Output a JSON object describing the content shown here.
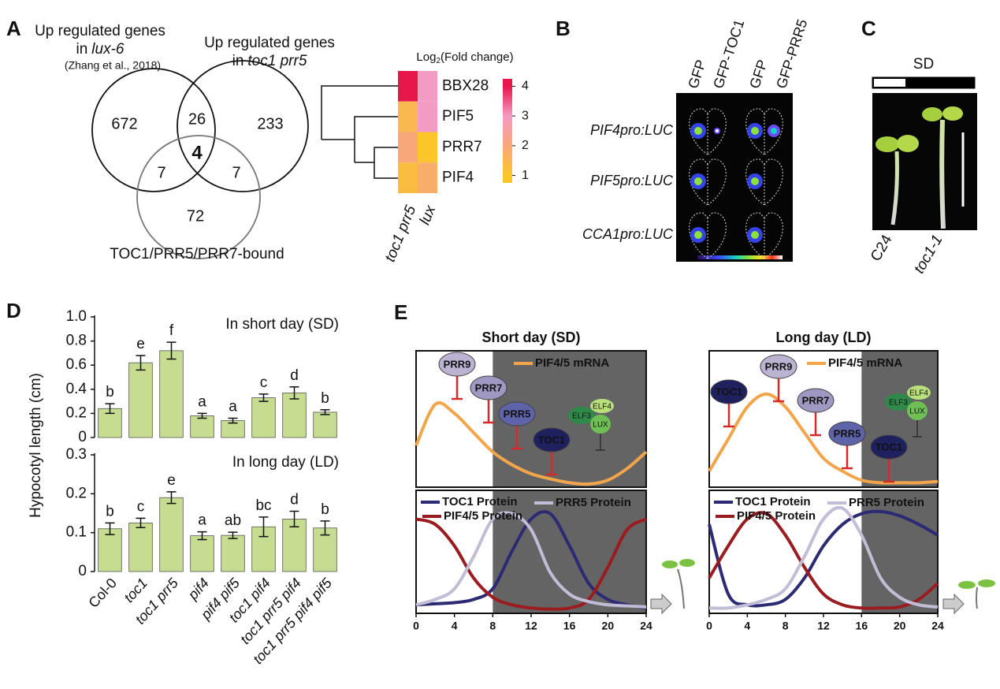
{
  "panels": [
    "A",
    "B",
    "C",
    "D",
    "E"
  ],
  "venn": {
    "sets": [
      {
        "lines": [
          "Up regulated genes"
        ],
        "prefix": "in",
        "genotype": "lux-6",
        "note": "(Zhang et al., 2018)"
      },
      {
        "lines": [
          "Up regulated genes"
        ],
        "prefix": "in",
        "genotype": "toc1 prr5"
      },
      {
        "lines": [
          "TOC1/PRR5/PRR7-bound"
        ]
      }
    ],
    "counts": [
      672,
      26,
      233,
      7,
      4,
      7,
      72
    ]
  },
  "heatmap": {
    "title": [
      "Log",
      "2",
      "(Fold change)"
    ],
    "rows": [
      "BBX28",
      "PIF5",
      "PRR7",
      "PIF4"
    ],
    "columns": [
      "toc1 prr5",
      "lux"
    ],
    "values": [
      [
        4,
        3
      ],
      [
        1.5,
        3
      ],
      [
        2,
        1
      ],
      [
        1.3,
        1.8
      ]
    ],
    "scale": {
      "lim": [
        0.75,
        4.25
      ],
      "ticks": [
        1,
        2,
        3,
        4
      ],
      "colors": [
        "#fbc62a",
        "#f8a77a",
        "#f39bc2",
        "#e8174b"
      ]
    }
  },
  "luc": {
    "columns": [
      "GFP",
      "GFP-TOC1",
      "GFP",
      "GFP-PRR5"
    ],
    "rows": [
      "PIF4pro:LUC",
      "PIF5pro:LUC",
      "CCA1pro:LUC"
    ]
  },
  "seedlings": {
    "photoperiod": "SD",
    "genotypes": [
      "C24",
      "toc1-1"
    ]
  },
  "chart_data": [
    {
      "type": "bar",
      "ylabel": "Hypocotyl length (cm)",
      "annotation": "In short day (SD)",
      "color": "#c6dc90",
      "values": [
        0.24,
        0.62,
        0.72,
        0.18,
        0.14,
        0.33,
        0.37,
        0.21
      ],
      "errors": [
        0.04,
        0.06,
        0.07,
        0.02,
        0.02,
        0.03,
        0.05,
        0.02
      ],
      "group_labels": [
        "b",
        "e",
        "f",
        "a",
        "a",
        "c",
        "d",
        "b"
      ],
      "ylim": [
        0,
        1
      ],
      "yticks": [
        0,
        0.2,
        0.4,
        0.6,
        0.8,
        {
          "value": 1,
          "label": "1.0"
        }
      ]
    },
    {
      "type": "bar",
      "annotation": "In long day (LD)",
      "color": "#c6dc90",
      "categories": [
        "Col-0",
        "toc1",
        "toc1 prr5",
        "pif4",
        "pif4 pif5",
        "toc1 pif4",
        "toc1 prr5 pif4",
        "toc1 prr5 pif4 pif5"
      ],
      "values": [
        0.11,
        0.125,
        0.19,
        0.092,
        0.093,
        0.115,
        0.135,
        0.112
      ],
      "errors": [
        0.015,
        0.012,
        0.015,
        0.01,
        0.008,
        0.025,
        0.02,
        0.018
      ],
      "group_labels": [
        "b",
        "c",
        "e",
        "a",
        "ab",
        "bc",
        "d",
        "b"
      ],
      "ylim": [
        0,
        0.3
      ],
      "yticks": [
        0,
        0.1,
        0.2,
        0.3
      ]
    },
    {
      "type": "line",
      "title": "Short day (SD)",
      "x": [
        0,
        2,
        4,
        6,
        8,
        10,
        12,
        14,
        16,
        18,
        20,
        22,
        24
      ],
      "xlim": [
        0,
        24
      ],
      "xticks": [
        0,
        4,
        8,
        12,
        16,
        20,
        24
      ],
      "shade": [
        8,
        24
      ],
      "regulators": [
        {
          "name": "PRR9",
          "color": "#bcb3d2"
        },
        {
          "name": "PRR7",
          "color": "#9e98c2"
        },
        {
          "name": "PRR5",
          "color": "#5f63aa"
        },
        {
          "name": "TOC1",
          "color": "#1f205e"
        }
      ],
      "complex": [
        "ELF3",
        "ELF4",
        "LUX"
      ],
      "mrna": {
        "ylim": [
          0,
          1
        ],
        "series": [
          {
            "name": "PIF4/5 mRNA",
            "color": "#f2a54a",
            "values": [
              0.3,
              0.62,
              0.55,
              0.4,
              0.25,
              0.15,
              0.08,
              0.04,
              0.01,
              0,
              0.03,
              0.12,
              0.25
            ]
          }
        ]
      },
      "protein": {
        "ylim": [
          0,
          1
        ],
        "series": [
          {
            "name": "TOC1 Protein",
            "color": "#2b2a72",
            "values": [
              0.05,
              0.06,
              0.07,
              0.1,
              0.2,
              0.55,
              0.85,
              0.9,
              0.6,
              0.25,
              0.1,
              0.05,
              0.02
            ]
          },
          {
            "name": "PIF4/5 Protein",
            "color": "#9b1c20",
            "values": [
              0.85,
              0.8,
              0.6,
              0.3,
              0.12,
              0.05,
              0.02,
              0.01,
              0.02,
              0.1,
              0.4,
              0.75,
              0.85
            ]
          },
          {
            "name": "PRR5 Protein",
            "color": "#c3bcd6",
            "values": [
              0.05,
              0.1,
              0.2,
              0.5,
              0.85,
              0.9,
              0.75,
              0.35,
              0.15,
              0.08,
              0.05,
              0.04,
              0.03
            ]
          }
        ]
      }
    },
    {
      "type": "line",
      "title": "Long day (LD)",
      "x": [
        0,
        2,
        4,
        6,
        8,
        10,
        12,
        14,
        16,
        18,
        20,
        22,
        24
      ],
      "xlim": [
        0,
        24
      ],
      "xticks": [
        0,
        4,
        8,
        12,
        16,
        20,
        24
      ],
      "shade": [
        16,
        24
      ],
      "regulators": [
        {
          "name": "TOC1",
          "color": "#1f205e"
        },
        {
          "name": "PRR9",
          "color": "#bcb3d2"
        },
        {
          "name": "PRR7",
          "color": "#9e98c2"
        },
        {
          "name": "PRR5",
          "color": "#5f63aa"
        },
        {
          "name": "TOC1",
          "color": "#1f205e"
        }
      ],
      "complex": [
        "ELF3",
        "ELF4",
        "LUX"
      ],
      "mrna": {
        "ylim": [
          0,
          1
        ],
        "series": [
          {
            "name": "PIF4/5 mRNA",
            "color": "#f2a54a",
            "values": [
              0.1,
              0.35,
              0.6,
              0.7,
              0.6,
              0.4,
              0.2,
              0.1,
              0.03,
              0.01,
              0.01,
              0.01,
              0.02
            ]
          }
        ]
      },
      "protein": {
        "ylim": [
          0,
          1
        ],
        "series": [
          {
            "name": "TOC1 Protein",
            "color": "#2b2a72",
            "values": [
              0.8,
              0.15,
              0.05,
              0.05,
              0.1,
              0.3,
              0.6,
              0.8,
              0.9,
              0.92,
              0.88,
              0.8,
              0.7
            ]
          },
          {
            "name": "PIF4/5 Protein",
            "color": "#9b1c20",
            "values": [
              0.3,
              0.6,
              0.85,
              0.9,
              0.7,
              0.4,
              0.15,
              0.05,
              0.02,
              0.02,
              0.03,
              0.1,
              0.25
            ]
          },
          {
            "name": "PRR5 Protein",
            "color": "#c3bcd6",
            "values": [
              0.02,
              0.02,
              0.05,
              0.1,
              0.2,
              0.5,
              0.85,
              0.95,
              0.7,
              0.3,
              0.12,
              0.05,
              0.03
            ]
          }
        ]
      }
    }
  ]
}
